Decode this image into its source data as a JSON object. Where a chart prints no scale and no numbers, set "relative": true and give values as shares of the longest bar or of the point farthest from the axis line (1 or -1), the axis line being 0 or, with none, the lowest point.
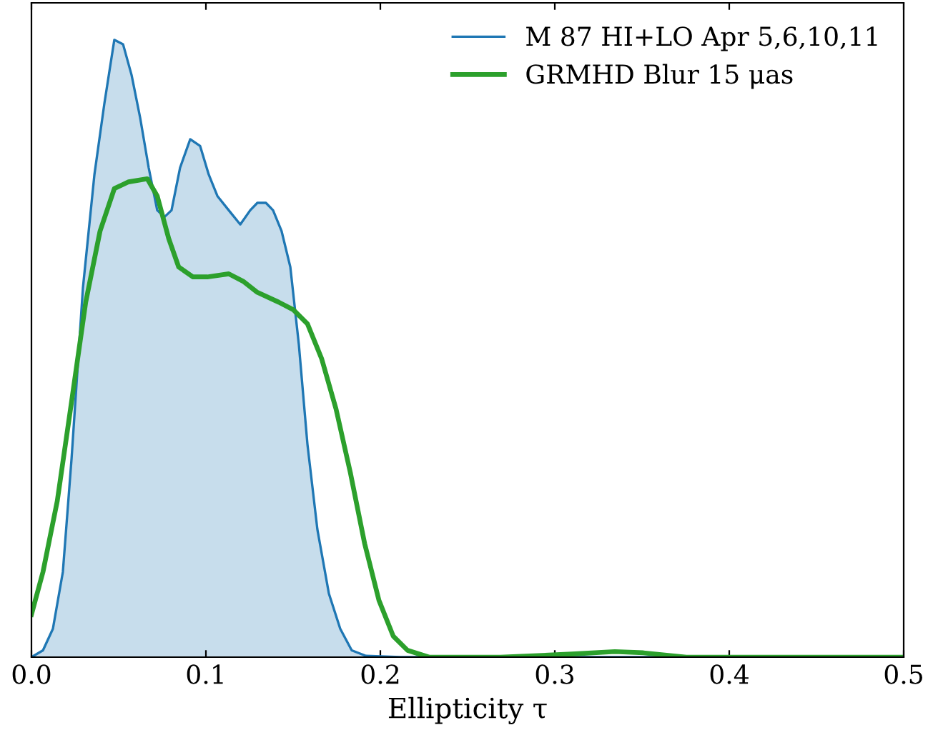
{
  "chart_data": {
    "type": "line",
    "relative": true,
    "xlabel": "Ellipticity τ",
    "xlim": [
      0,
      0.5
    ],
    "xticks": [
      {
        "value": 0,
        "label": "0.0"
      },
      0.1,
      0.2,
      0.3,
      0.4,
      0.5
    ],
    "tick_labels": "x",
    "legend": "top right",
    "grid": false,
    "series": [
      {
        "name": "M 87 HI+LO Apr 5,6,10,11",
        "type": "area",
        "color": "#1f77b4",
        "x": [
          0,
          0.0066,
          0.0123,
          0.018,
          0.023,
          0.0295,
          0.0361,
          0.0418,
          0.0475,
          0.0525,
          0.0574,
          0.0623,
          0.0672,
          0.0721,
          0.0762,
          0.0803,
          0.0852,
          0.091,
          0.0967,
          0.1016,
          0.1066,
          0.1131,
          0.1197,
          0.1254,
          0.1295,
          0.1344,
          0.1385,
          0.1434,
          0.1484,
          0.1533,
          0.1582,
          0.1639,
          0.1705,
          0.177,
          0.1836,
          0.1918,
          0.2115,
          0.5
        ],
        "values": [
          0,
          0.011,
          0.046,
          0.138,
          0.322,
          0.598,
          0.782,
          0.897,
          1.0,
          0.993,
          0.943,
          0.874,
          0.793,
          0.724,
          0.713,
          0.724,
          0.793,
          0.839,
          0.828,
          0.782,
          0.747,
          0.724,
          0.701,
          0.724,
          0.736,
          0.736,
          0.724,
          0.69,
          0.632,
          0.506,
          0.345,
          0.207,
          0.103,
          0.046,
          0.011,
          0.002,
          0,
          0
        ]
      },
      {
        "name": "GRMHD Blur 15 μas",
        "color": "#2ca02c",
        "x": [
          0,
          0.0066,
          0.0148,
          0.023,
          0.0311,
          0.0393,
          0.0475,
          0.0557,
          0.0664,
          0.0721,
          0.0787,
          0.0844,
          0.0926,
          0.1008,
          0.1131,
          0.1213,
          0.1295,
          0.1418,
          0.15,
          0.1582,
          0.1664,
          0.1746,
          0.1828,
          0.191,
          0.1992,
          0.2074,
          0.2156,
          0.2279,
          0.2689,
          0.3098,
          0.3344,
          0.3508,
          0.3754,
          0.5
        ],
        "values": [
          0.069,
          0.138,
          0.253,
          0.414,
          0.575,
          0.69,
          0.759,
          0.77,
          0.775,
          0.747,
          0.678,
          0.632,
          0.616,
          0.616,
          0.621,
          0.609,
          0.591,
          0.575,
          0.563,
          0.54,
          0.483,
          0.402,
          0.299,
          0.184,
          0.092,
          0.034,
          0.011,
          0,
          0,
          0.005,
          0.009,
          0.007,
          0,
          0
        ]
      }
    ]
  }
}
